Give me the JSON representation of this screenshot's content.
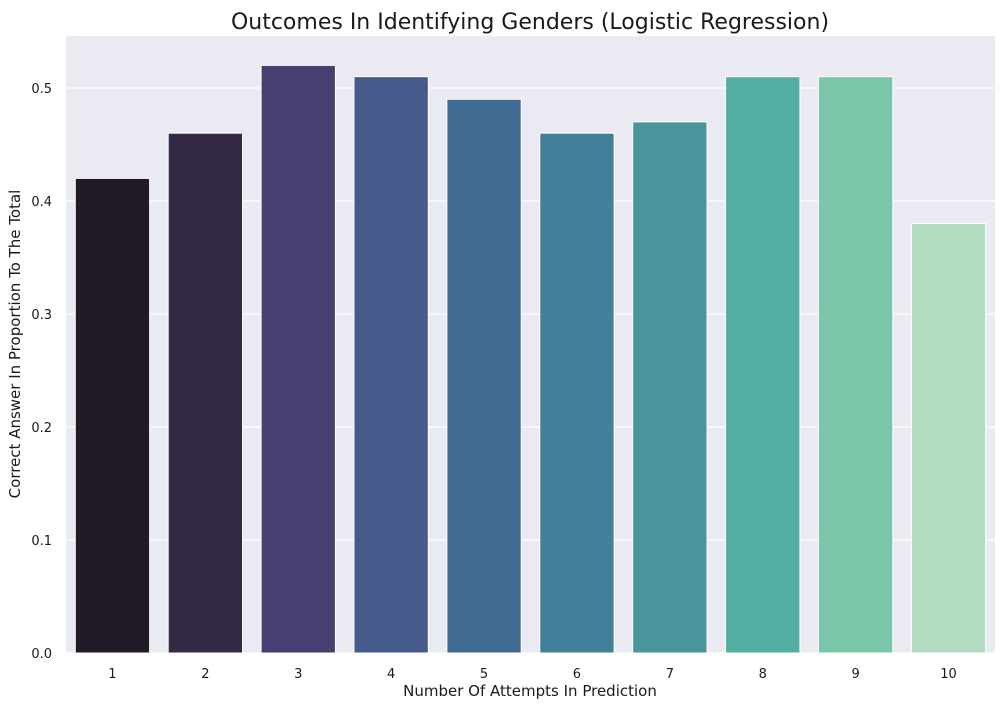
{
  "chart_data": {
    "type": "bar",
    "title": "Outcomes In Identifying Genders (Logistic Regression)",
    "xlabel": "Number Of Attempts In Prediction",
    "ylabel": "Correct Answer In Proportion To The Total",
    "categories": [
      "1",
      "2",
      "3",
      "4",
      "5",
      "6",
      "7",
      "8",
      "9",
      "10"
    ],
    "values": [
      0.42,
      0.46,
      0.52,
      0.51,
      0.49,
      0.46,
      0.47,
      0.51,
      0.51,
      0.38
    ],
    "colors": [
      "#231a28",
      "#352a46",
      "#473e72",
      "#475a8c",
      "#416b92",
      "#427f98",
      "#48969c",
      "#53ada3",
      "#7ac6a9",
      "#b1dcc2"
    ],
    "ylim": [
      0,
      0.546
    ],
    "yticks": [
      "0.0",
      "0.1",
      "0.2",
      "0.3",
      "0.4",
      "0.5"
    ],
    "grid": true,
    "background": "#eaeaf2"
  }
}
